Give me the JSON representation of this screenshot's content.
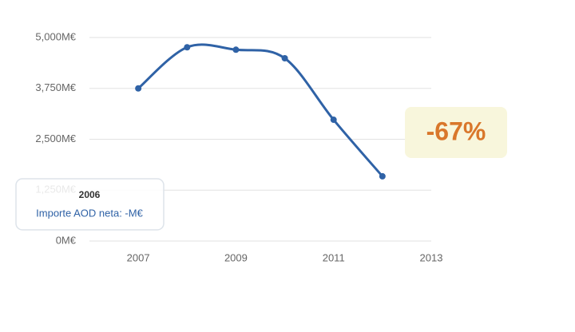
{
  "chart_data": {
    "type": "line",
    "x": [
      2007,
      2008,
      2009,
      2010,
      2011,
      2012
    ],
    "series": [
      {
        "name": "Importe AOD neta",
        "color": "#2f62a6",
        "values": [
          3750,
          4760,
          4700,
          4490,
          2980,
          1590
        ]
      }
    ],
    "xlim": [
      2006,
      2013
    ],
    "xticks": [
      2007,
      2009,
      2011,
      2013
    ],
    "ylim": [
      0,
      5000
    ],
    "yticks": [
      {
        "value": 0,
        "label": "0M€"
      },
      {
        "value": 1250,
        "label": "1,250M€"
      },
      {
        "value": 2500,
        "label": "2,500M€"
      },
      {
        "value": 3750,
        "label": "3,750M€"
      },
      {
        "value": 5000,
        "label": "5,000M€"
      }
    ],
    "grid": true,
    "annotation": "-67%",
    "tooltip": {
      "title": "2006",
      "text": "Importe AOD neta: -M€"
    }
  }
}
